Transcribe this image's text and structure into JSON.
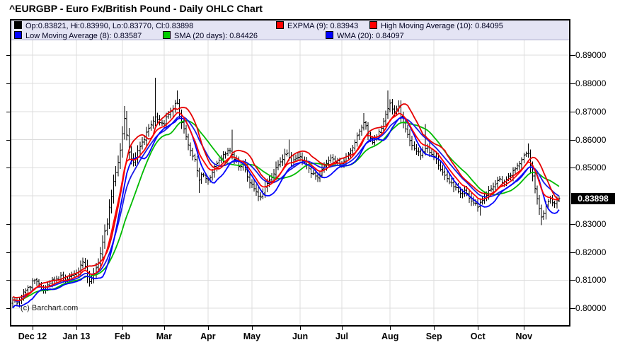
{
  "title": "^EURGBP - Euro Fx/British Pound - Daily OHLC Chart",
  "watermark": "(c) Barchart.com",
  "colors": {
    "grid": "#DCDCDC",
    "legend_bg": "#E4E4F4",
    "bars": "#000000",
    "flag_bg": "#000000",
    "flag_text": "#FFFFFF"
  },
  "legend": {
    "ohlc": {
      "color": "#000000",
      "label": "Op:0.83821, Hi:0.83990, Lo:0.83770, Cl:0.83898"
    },
    "expma": {
      "color": "#FF0000",
      "label": "EXPMA (9): 0.83943"
    },
    "high_ma": {
      "color": "#FF0000",
      "label": "High Moving Average (10): 0.84095"
    },
    "low_ma": {
      "color": "#0000FF",
      "label": "Low Moving Average (8): 0.83587"
    },
    "sma": {
      "color": "#00CC00",
      "label": "SMA (20 days): 0.84426"
    },
    "wma": {
      "color": "#0000FF",
      "label": "WMA (20): 0.84097"
    }
  },
  "chart_data": {
    "type": "ohlc",
    "symbol": "^EURGBP",
    "timeframe": "daily",
    "title": "^EURGBP - Euro Fx/British Pound - Daily OHLC Chart",
    "ylim": [
      0.8,
      0.89
    ],
    "grid_step": 0.01,
    "grid": true,
    "n_bars": 250,
    "y_ticks": [
      {
        "value": 0.89,
        "label": "0.89000"
      },
      {
        "value": 0.88,
        "label": "0.88000"
      },
      {
        "value": 0.87,
        "label": "0.87000"
      },
      {
        "value": 0.86,
        "label": "0.86000"
      },
      {
        "value": 0.85,
        "label": "0.85000"
      },
      {
        "value": 0.83,
        "label": "0.83000"
      },
      {
        "value": 0.82,
        "label": "0.82000"
      },
      {
        "value": 0.81,
        "label": "0.81000"
      },
      {
        "value": 0.8,
        "label": "0.80000"
      }
    ],
    "x_ticks": [
      {
        "label": "Dec 12",
        "bar": 9
      },
      {
        "label": "Jan 13",
        "bar": 29
      },
      {
        "label": "Feb",
        "bar": 50
      },
      {
        "label": "Mar",
        "bar": 69
      },
      {
        "label": "Apr",
        "bar": 89
      },
      {
        "label": "May",
        "bar": 109
      },
      {
        "label": "Jun",
        "bar": 131
      },
      {
        "label": "Jul",
        "bar": 150
      },
      {
        "label": "Aug",
        "bar": 172
      },
      {
        "label": "Sep",
        "bar": 192
      },
      {
        "label": "Oct",
        "bar": 212
      },
      {
        "label": "Nov",
        "bar": 233
      }
    ],
    "close_anchors": [
      [
        0,
        0.803
      ],
      [
        2,
        0.8018
      ],
      [
        5,
        0.8058
      ],
      [
        7,
        0.8075
      ],
      [
        10,
        0.81
      ],
      [
        12,
        0.8088
      ],
      [
        14,
        0.8066
      ],
      [
        17,
        0.809
      ],
      [
        20,
        0.8106
      ],
      [
        22,
        0.8116
      ],
      [
        24,
        0.81
      ],
      [
        26,
        0.8112
      ],
      [
        29,
        0.8125
      ],
      [
        32,
        0.8165
      ],
      [
        35,
        0.8095
      ],
      [
        37,
        0.8125
      ],
      [
        39,
        0.816
      ],
      [
        41,
        0.8235
      ],
      [
        43,
        0.83
      ],
      [
        44,
        0.836
      ],
      [
        46,
        0.845
      ],
      [
        48,
        0.852
      ],
      [
        50,
        0.862
      ],
      [
        51,
        0.8675
      ],
      [
        53,
        0.8555
      ],
      [
        55,
        0.8518
      ],
      [
        58,
        0.8575
      ],
      [
        60,
        0.86
      ],
      [
        62,
        0.864
      ],
      [
        65,
        0.868
      ],
      [
        67,
        0.866
      ],
      [
        69,
        0.8655
      ],
      [
        71,
        0.869
      ],
      [
        73,
        0.871
      ],
      [
        75,
        0.873
      ],
      [
        77,
        0.866
      ],
      [
        79,
        0.861
      ],
      [
        81,
        0.856
      ],
      [
        83,
        0.853
      ],
      [
        85,
        0.8455
      ],
      [
        86,
        0.8475
      ],
      [
        89,
        0.8455
      ],
      [
        91,
        0.8485
      ],
      [
        93,
        0.8515
      ],
      [
        95,
        0.8535
      ],
      [
        97,
        0.8548
      ],
      [
        99,
        0.856
      ],
      [
        101,
        0.853
      ],
      [
        103,
        0.8505
      ],
      [
        105,
        0.8512
      ],
      [
        107,
        0.8468
      ],
      [
        109,
        0.844
      ],
      [
        111,
        0.8415
      ],
      [
        113,
        0.8395
      ],
      [
        115,
        0.8432
      ],
      [
        117,
        0.8455
      ],
      [
        119,
        0.8478
      ],
      [
        121,
        0.851
      ],
      [
        123,
        0.853
      ],
      [
        125,
        0.855
      ],
      [
        127,
        0.852
      ],
      [
        129,
        0.8532
      ],
      [
        131,
        0.854
      ],
      [
        133,
        0.852
      ],
      [
        135,
        0.8498
      ],
      [
        137,
        0.8478
      ],
      [
        139,
        0.8465
      ],
      [
        141,
        0.8495
      ],
      [
        143,
        0.8515
      ],
      [
        145,
        0.8535
      ],
      [
        147,
        0.8522
      ],
      [
        149,
        0.8512
      ],
      [
        150,
        0.8515
      ],
      [
        152,
        0.854
      ],
      [
        154,
        0.856
      ],
      [
        156,
        0.859
      ],
      [
        158,
        0.863
      ],
      [
        160,
        0.866
      ],
      [
        162,
        0.862
      ],
      [
        164,
        0.859
      ],
      [
        166,
        0.8612
      ],
      [
        168,
        0.864
      ],
      [
        170,
        0.869
      ],
      [
        172,
        0.873
      ],
      [
        174,
        0.87
      ],
      [
        176,
        0.872
      ],
      [
        178,
        0.866
      ],
      [
        180,
        0.8618
      ],
      [
        182,
        0.858
      ],
      [
        184,
        0.8558
      ],
      [
        186,
        0.8545
      ],
      [
        188,
        0.8568
      ],
      [
        190,
        0.8555
      ],
      [
        192,
        0.854
      ],
      [
        194,
        0.851
      ],
      [
        196,
        0.8485
      ],
      [
        198,
        0.8462
      ],
      [
        200,
        0.8445
      ],
      [
        202,
        0.843
      ],
      [
        204,
        0.8408
      ],
      [
        206,
        0.842
      ],
      [
        208,
        0.8392
      ],
      [
        210,
        0.8375
      ],
      [
        212,
        0.836
      ],
      [
        214,
        0.8385
      ],
      [
        216,
        0.8402
      ],
      [
        218,
        0.8425
      ],
      [
        220,
        0.8442
      ],
      [
        222,
        0.846
      ],
      [
        224,
        0.8448
      ],
      [
        226,
        0.847
      ],
      [
        228,
        0.849
      ],
      [
        230,
        0.8508
      ],
      [
        232,
        0.8528
      ],
      [
        233,
        0.8545
      ],
      [
        235,
        0.8552
      ],
      [
        237,
        0.847
      ],
      [
        239,
        0.839
      ],
      [
        241,
        0.8325
      ],
      [
        243,
        0.8368
      ],
      [
        245,
        0.839
      ],
      [
        247,
        0.8372
      ],
      [
        249,
        0.83898
      ]
    ],
    "wick_extremes": [
      {
        "bar": 32,
        "high": 0.8178
      },
      {
        "bar": 51,
        "high": 0.872
      },
      {
        "bar": 65,
        "high": 0.882
      },
      {
        "bar": 75,
        "high": 0.8775
      },
      {
        "bar": 85,
        "low": 0.841
      },
      {
        "bar": 100,
        "high": 0.8635
      },
      {
        "bar": 113,
        "low": 0.8385
      },
      {
        "bar": 126,
        "high": 0.86
      },
      {
        "bar": 160,
        "high": 0.8694
      },
      {
        "bar": 171,
        "high": 0.8775
      },
      {
        "bar": 176,
        "high": 0.874
      },
      {
        "bar": 188,
        "high": 0.8655
      },
      {
        "bar": 213,
        "low": 0.833
      },
      {
        "bar": 235,
        "high": 0.8586
      },
      {
        "bar": 241,
        "low": 0.8296
      }
    ],
    "last_bar": {
      "open": 0.83821,
      "high": 0.8399,
      "low": 0.8377,
      "close": 0.83898
    },
    "last_price_label": "0.83898",
    "overlays": [
      {
        "name": "SMA",
        "kind": "sma",
        "period": 20,
        "source": "close",
        "color": "#00BB00",
        "last_value": 0.84426
      },
      {
        "name": "WMA",
        "kind": "wma",
        "period": 20,
        "source": "close",
        "color": "#1A1AE6",
        "last_value": 0.84097
      },
      {
        "name": "Low Moving Average",
        "kind": "sma",
        "period": 8,
        "source": "low",
        "color": "#0000FF",
        "last_value": 0.83587
      },
      {
        "name": "High Moving Average",
        "kind": "sma",
        "period": 10,
        "source": "high",
        "color": "#E60000",
        "last_value": 0.84095
      },
      {
        "name": "EXPMA",
        "kind": "ema",
        "period": 9,
        "source": "close",
        "color": "#FF0000",
        "last_value": 0.83943
      }
    ],
    "legend_position": "top-inside",
    "y_axis_side": "right"
  }
}
